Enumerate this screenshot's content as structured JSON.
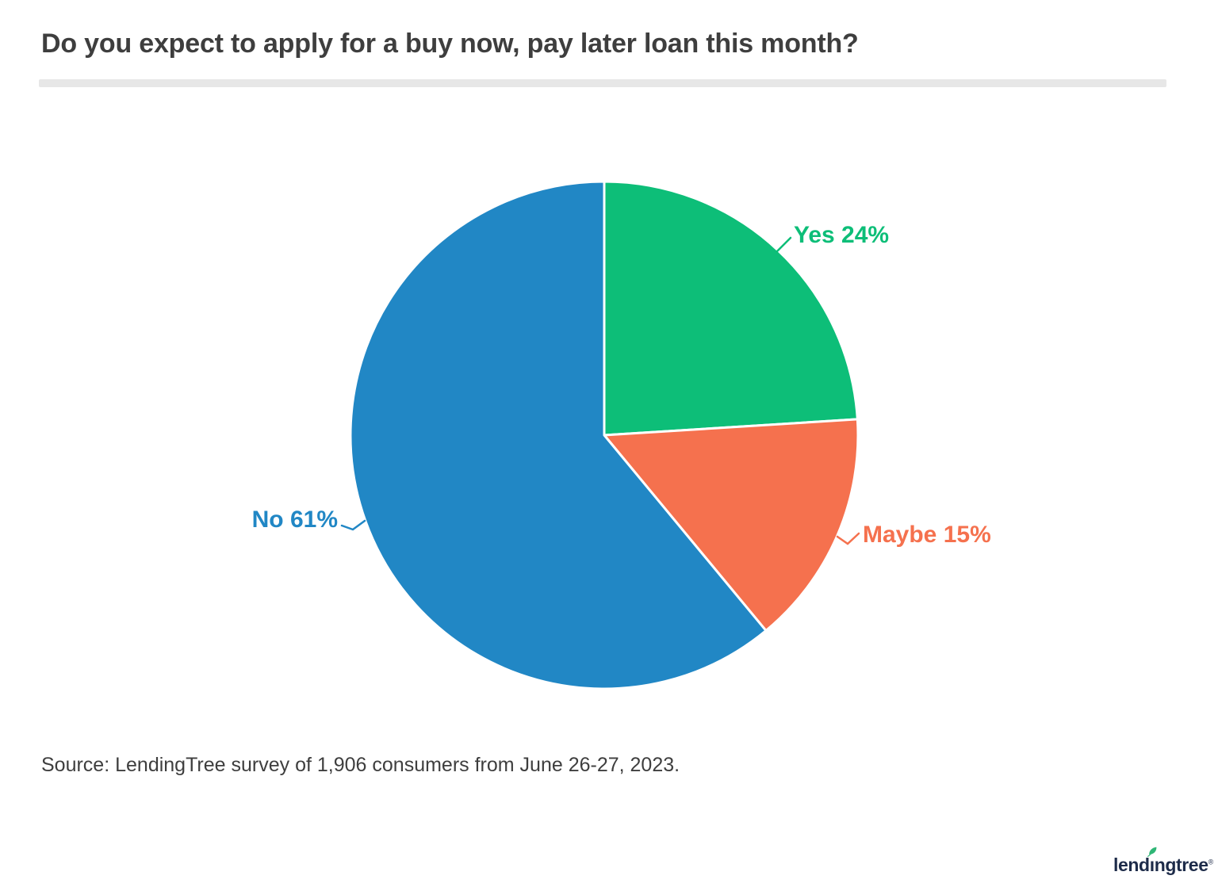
{
  "title": "Do you expect to apply for a buy now, pay later loan this month?",
  "source_note": "Source: LendingTree survey of 1,906 consumers from June 26-27, 2023.",
  "logo": {
    "text": "lendingtree",
    "registered_mark": "®",
    "navy": "#1d2b49",
    "leaf_green": "#2fb676"
  },
  "colors": {
    "background": "#ffffff",
    "title_text": "#3e3e3e",
    "divider": "#e7e7e7",
    "source_text": "#3e3e3e"
  },
  "chart_data": {
    "type": "pie",
    "title": "Do you expect to apply for a buy now, pay later loan this month?",
    "slices": [
      {
        "label": "Yes",
        "value": 24,
        "color": "#0dbe78"
      },
      {
        "label": "Maybe",
        "value": 15,
        "color": "#f5714e"
      },
      {
        "label": "No",
        "value": 61,
        "color": "#2187c5"
      }
    ],
    "start_angle": "12 o'clock",
    "direction": "clockwise",
    "label_format": "{label} {value}%",
    "legend": "none — direct callout labels with leader lines",
    "slice_divider_color": "#ffffff"
  }
}
